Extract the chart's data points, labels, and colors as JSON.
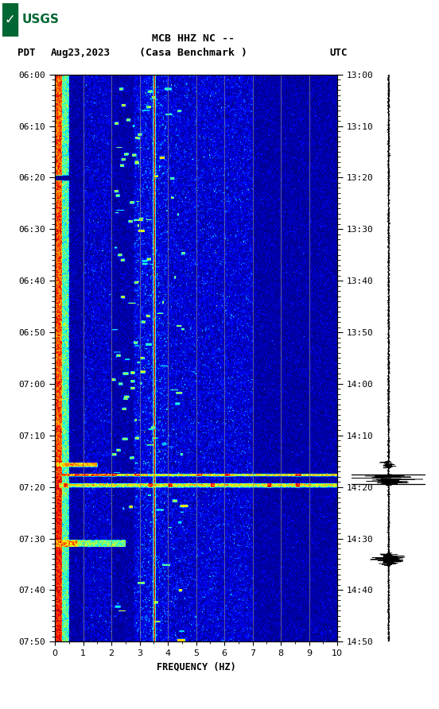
{
  "title_line1": "MCB HHZ NC --",
  "title_line2": "(Casa Benchmark )",
  "date_label": "Aug23,2023",
  "tz_left": "PDT",
  "tz_right": "UTC",
  "time_tick_labels_left": [
    "06:00",
    "06:10",
    "06:20",
    "06:30",
    "06:40",
    "06:50",
    "07:00",
    "07:10",
    "07:20",
    "07:30",
    "07:40",
    "07:50"
  ],
  "time_tick_labels_right": [
    "13:00",
    "13:10",
    "13:20",
    "13:30",
    "13:40",
    "13:50",
    "14:00",
    "14:10",
    "14:20",
    "14:30",
    "14:40",
    "14:50"
  ],
  "freq_min": 0,
  "freq_max": 10,
  "freq_ticks": [
    0,
    1,
    2,
    3,
    4,
    5,
    6,
    7,
    8,
    9,
    10
  ],
  "freq_label": "FREQUENCY (HZ)",
  "vertical_lines_freq": [
    1.0,
    2.0,
    3.0,
    3.5,
    4.0,
    5.0,
    6.0,
    7.0,
    8.0,
    9.0
  ],
  "colormap": "jet",
  "fig_width": 5.52,
  "fig_height": 8.92,
  "usgs_logo_color": "#006633"
}
